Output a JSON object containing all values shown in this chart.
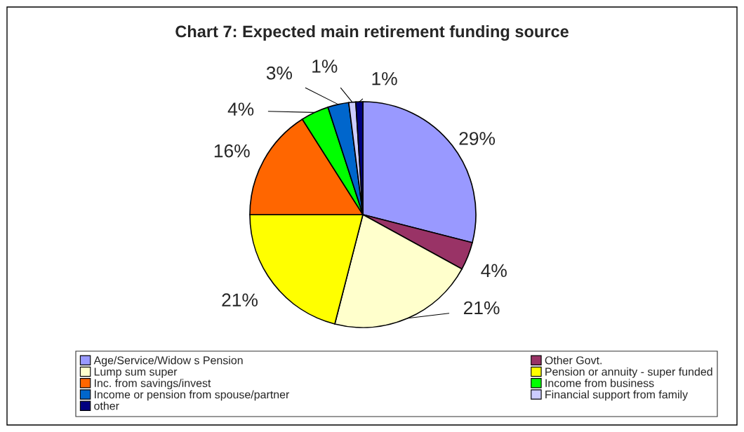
{
  "chart_data": {
    "type": "pie",
    "title": "Chart 7: Expected main retirement funding source",
    "categories": [
      "Age/Service/Widow s Pension",
      "Other Govt.",
      "Lump sum super",
      "Pension or annuity - super funded",
      "Inc. from savings/invest",
      "Income from business",
      "Income or pension from spouse/partner",
      "Financial support from family",
      "other"
    ],
    "values": [
      29,
      4,
      21,
      21,
      16,
      4,
      3,
      1,
      1
    ],
    "colors": [
      "#9999ff",
      "#993366",
      "#ffffcc",
      "#ffff00",
      "#ff6600",
      "#00ff00",
      "#0066cc",
      "#ccccff",
      "#000080"
    ],
    "value_labels": [
      "29%",
      "4%",
      "21%",
      "21%",
      "16%",
      "4%",
      "3%",
      "1%",
      "1%"
    ],
    "legend": "bottom"
  }
}
